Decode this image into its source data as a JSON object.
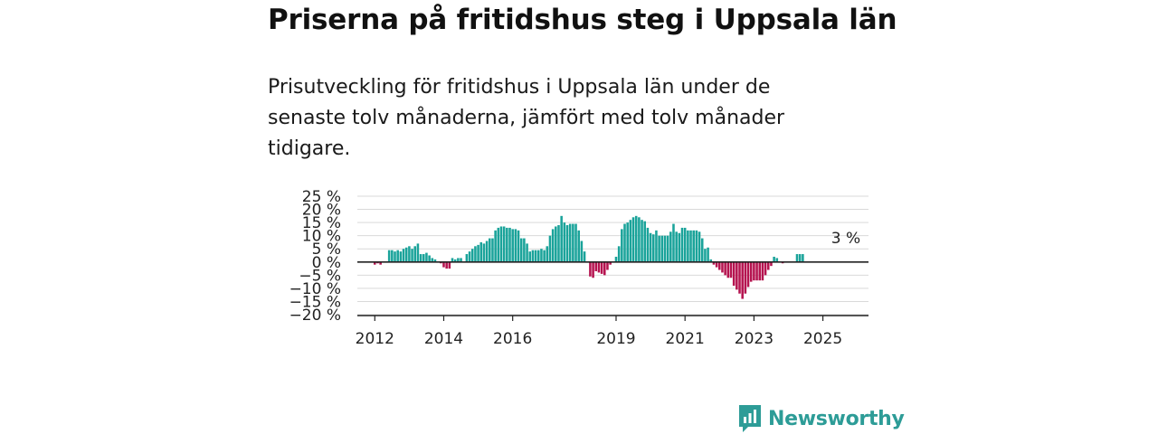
{
  "title": "Priserna på fritidshus steg i Uppsala län",
  "subtitle": "Prisutveckling för fritidshus i Uppsala län under de senaste tolv månaderna, jämfört med tolv månader tidigare.",
  "brand": {
    "name": "Newsworthy",
    "icon": "newsworthy-logo-icon",
    "color": "#2d9c97"
  },
  "chart_data": {
    "type": "bar",
    "colors": {
      "positive": "#1aa39a",
      "negative": "#b5134f",
      "zero_line": "#222222",
      "grid": "#d9d9d9"
    },
    "ylim": [
      -20,
      25
    ],
    "yticks": [
      25,
      20,
      15,
      10,
      5,
      0,
      -5,
      -10,
      -15,
      -20
    ],
    "ytick_labels": [
      "25 %",
      "20 %",
      "15 %",
      "10 %",
      "5 %",
      "0 %",
      "−5 %",
      "−10 %",
      "−15 %",
      "−20 %"
    ],
    "x_start": "2011-01",
    "xticks": [
      {
        "label": "2012",
        "date": "2012-01"
      },
      {
        "label": "2014",
        "date": "2014-01"
      },
      {
        "label": "2016",
        "date": "2016-01"
      },
      {
        "label": "2019",
        "date": "2019-01"
      },
      {
        "label": "2021",
        "date": "2021-01"
      },
      {
        "label": "2023",
        "date": "2023-01"
      },
      {
        "label": "2025",
        "date": "2025-01"
      }
    ],
    "annotation": {
      "text": "3 %",
      "date": "2025-09"
    },
    "series": [
      {
        "values": [
          0,
          0,
          0,
          0,
          0,
          0,
          0,
          0,
          0,
          0,
          0,
          0,
          -1,
          -0.5,
          -1,
          0,
          0,
          4.5,
          4.5,
          4,
          4.5,
          4,
          5,
          5.5,
          6,
          5,
          6,
          7,
          3,
          3,
          3.5,
          2.5,
          1.5,
          1,
          0,
          -0.5,
          -2,
          -2.5,
          -2.5,
          1.5,
          1,
          1.5,
          1.5,
          0,
          3,
          4,
          5,
          6,
          6.5,
          7.5,
          7,
          8,
          9,
          9,
          12,
          13,
          13.5,
          13.5,
          13,
          13,
          12.5,
          12.5,
          12,
          9,
          9,
          7,
          4,
          4.5,
          4.5,
          4.5,
          5,
          4.5,
          6,
          10,
          12.5,
          13.5,
          14,
          17.5,
          15,
          14,
          14.5,
          14.5,
          14.5,
          12,
          8,
          4,
          0,
          -5.5,
          -6,
          -3.5,
          -4,
          -4.5,
          -5,
          -3,
          -1,
          0,
          2,
          6,
          12.5,
          14.5,
          15,
          16,
          17,
          17.5,
          17,
          16,
          15.5,
          13,
          11,
          10.5,
          12,
          10,
          10,
          10,
          10,
          11.5,
          14.5,
          11.5,
          11,
          13,
          13,
          12,
          12,
          12,
          12,
          11.5,
          9,
          5,
          5.5,
          1,
          -1,
          -2,
          -3,
          -4,
          -5,
          -6,
          -6,
          -9,
          -10.5,
          -12,
          -14,
          -12,
          -9.5,
          -7.5,
          -7,
          -7,
          -7,
          -7,
          -5,
          -3,
          -1.5,
          2,
          1.5,
          0,
          -0.5,
          0,
          0,
          0,
          0,
          3,
          3,
          3
        ]
      }
    ]
  }
}
